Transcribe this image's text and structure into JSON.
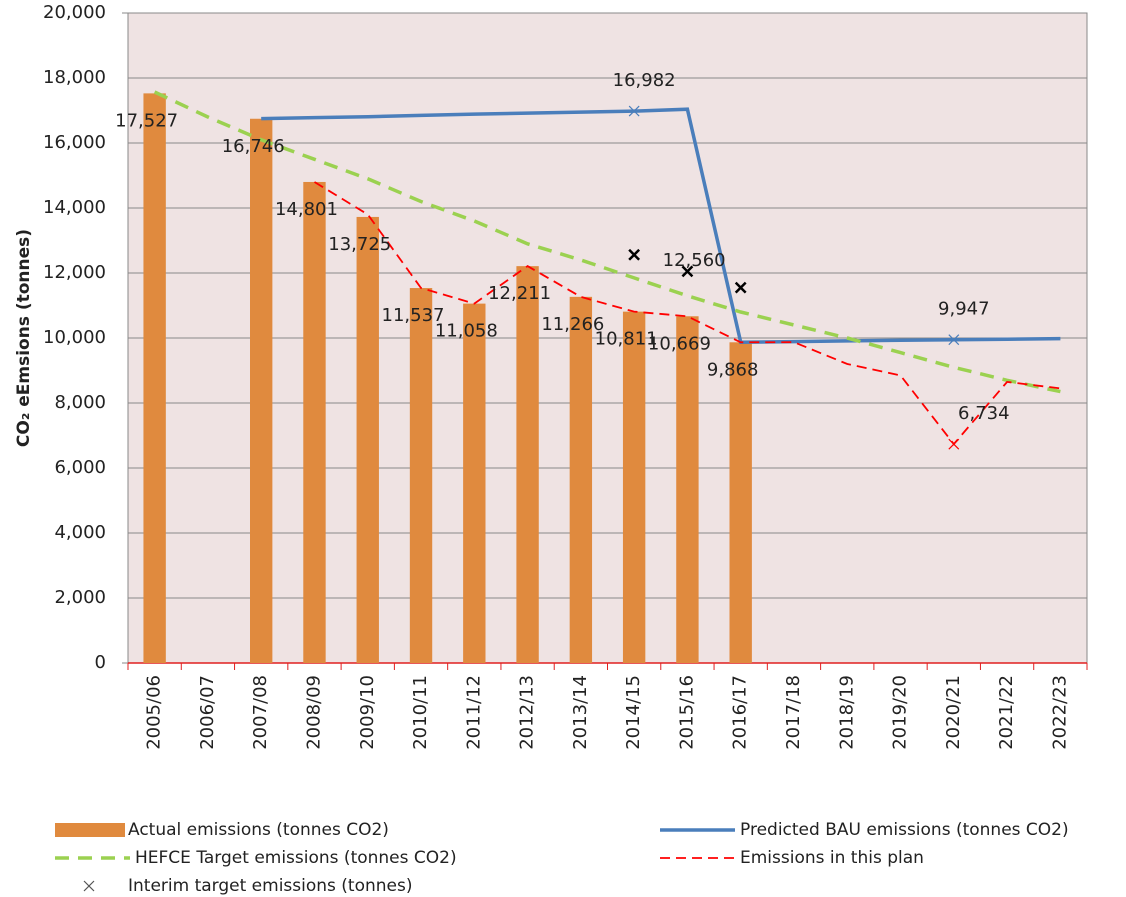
{
  "chart_data": {
    "type": "bar",
    "y_label": "CO₂ eEmsions (tonnes)",
    "categories": [
      "2005/06",
      "2006/07",
      "2007/08",
      "2008/09",
      "2009/10",
      "2010/11",
      "2011/12",
      "2012/13",
      "2013/14",
      "2014/15",
      "2015/16",
      "2016/17",
      "2017/18",
      "2018/19",
      "2019/20",
      "2020/21",
      "2021/22",
      "2022/23"
    ],
    "ylim": [
      0,
      20000
    ],
    "yticks": [
      0,
      {
        "value": 2000,
        "label": "2,000"
      },
      {
        "value": 4000,
        "label": "4,000"
      },
      {
        "value": 6000,
        "label": "6,000"
      },
      {
        "value": 8000,
        "label": "8,000"
      },
      {
        "value": 10000,
        "label": "10,000"
      },
      {
        "value": 12000,
        "label": "12,000"
      },
      {
        "value": 14000,
        "label": "14,000"
      },
      {
        "value": 16000,
        "label": "16,000"
      },
      {
        "value": 18000,
        "label": "18,000"
      },
      {
        "value": 20000,
        "label": "20,000"
      }
    ],
    "grid": true,
    "series": [
      {
        "name": "Actual emissions (tonnes CO2)",
        "type": "bar",
        "color": "#e08a3e",
        "values": [
          17527,
          null,
          16746,
          14801,
          13725,
          11537,
          11058,
          12211,
          11266,
          10811,
          10669,
          9868,
          null,
          null,
          null,
          null,
          null,
          null
        ],
        "value_labels": [
          "17,527",
          null,
          "16,746",
          "14,801",
          "13,725",
          "11,537",
          "11,058",
          "12,211",
          "11,266",
          "10,811",
          "10,669",
          "9,868",
          null,
          null,
          null,
          null,
          null,
          null
        ]
      },
      {
        "name": "Predicted BAU emissions (tonnes CO2)",
        "type": "line",
        "color": "#4a7ebb",
        "dash": false,
        "values": [
          null,
          null,
          16750,
          16780,
          16810,
          16850,
          16890,
          16920,
          16950,
          16982,
          17040,
          9870,
          9890,
          9910,
          9930,
          9947,
          9960,
          9980
        ],
        "value_labels": [
          null,
          null,
          null,
          null,
          null,
          null,
          null,
          null,
          null,
          "16,982",
          null,
          null,
          null,
          null,
          null,
          "9,947",
          null,
          null
        ]
      },
      {
        "name": "HEFCE Target  emissions (tonnes CO2)",
        "type": "line",
        "color": "#9bd150",
        "dash": true,
        "values": [
          17570,
          16800,
          16100,
          15500,
          14900,
          14200,
          13600,
          12900,
          12400,
          11850,
          11300,
          10800,
          10400,
          10000,
          9550,
          9100,
          8700,
          8350
        ]
      },
      {
        "name": "Emissions in this plan",
        "type": "line",
        "color": "#ff0000",
        "dash": true,
        "values": [
          null,
          null,
          null,
          14801,
          13800,
          11537,
          11058,
          12211,
          11266,
          10811,
          10669,
          9868,
          9870,
          9200,
          8850,
          6734,
          8650,
          8450
        ],
        "value_labels": [
          null,
          null,
          null,
          null,
          null,
          null,
          null,
          null,
          null,
          null,
          null,
          null,
          null,
          null,
          null,
          "6,734",
          null,
          null
        ]
      },
      {
        "name": "Interim target emissions (tonnes)",
        "type": "scatter",
        "color": "#000000",
        "values": [
          null,
          null,
          null,
          null,
          null,
          null,
          null,
          null,
          null,
          12560,
          12050,
          11550,
          null,
          null,
          null,
          null,
          null,
          null
        ],
        "value_labels": [
          null,
          null,
          null,
          null,
          null,
          null,
          null,
          null,
          null,
          "12,560",
          null,
          null,
          null,
          null,
          null,
          null,
          null,
          null
        ]
      }
    ]
  }
}
